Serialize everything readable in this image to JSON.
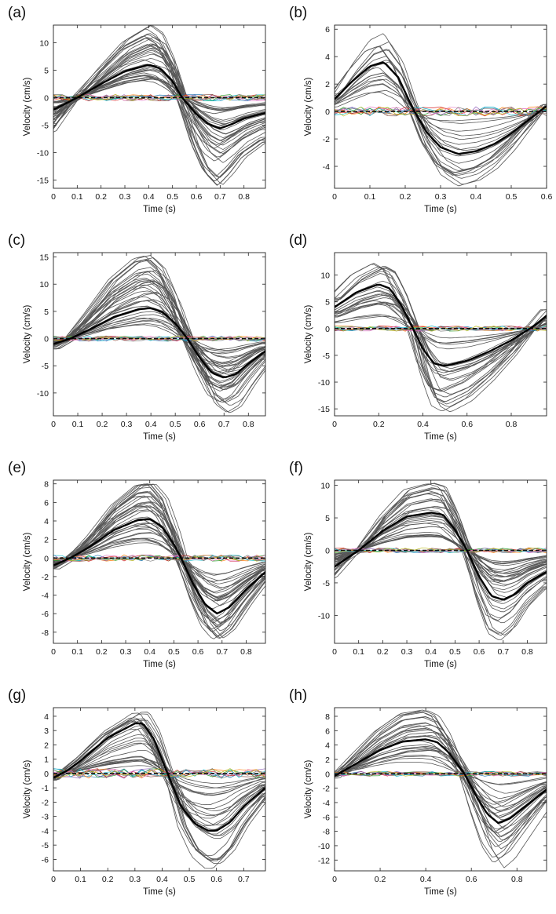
{
  "chart_data": [
    {
      "id": "a",
      "panel_label": "(a)",
      "type": "line",
      "xlabel": "Time (s)",
      "ylabel": "Velocity (cm/s)",
      "xlim": [
        0,
        0.89
      ],
      "ylim": [
        -16.5,
        13.2
      ],
      "xticks": [
        0,
        0.1,
        0.2,
        0.3,
        0.4,
        0.5,
        0.6,
        0.7,
        0.8
      ],
      "xtick_labels": [
        "0",
        "0.1",
        "0.2",
        "0.3",
        "0.4",
        "0.5",
        "0.6",
        "0.7",
        "0.8"
      ],
      "yticks": [
        10,
        5,
        0,
        -5,
        -10,
        -15
      ],
      "ytick_labels": [
        "10",
        "5",
        "0",
        "-5",
        "-10",
        "-15"
      ],
      "mean_curve": {
        "x": [
          0,
          0.1,
          0.2,
          0.3,
          0.4,
          0.45,
          0.5,
          0.54,
          0.6,
          0.65,
          0.7,
          0.75,
          0.8,
          0.89
        ],
        "y": [
          -2.2,
          0,
          2.5,
          4.8,
          6.0,
          5.3,
          3.0,
          0,
          -3.0,
          -4.8,
          -5.6,
          -4.8,
          -3.8,
          -2.8
        ]
      },
      "peak_pos": 0.39,
      "zero_cross": 0.535,
      "trough_pos": 0.71,
      "pos_range": [
        3.0,
        13.2
      ],
      "neg_range": [
        -1.5,
        -16.3
      ],
      "n_curves": 38,
      "noise_amp": 0.6
    },
    {
      "id": "b",
      "panel_label": "(b)",
      "type": "line",
      "xlabel": "Time (s)",
      "ylabel": "Velocity (cm/s)",
      "xlim": [
        0,
        0.6
      ],
      "ylim": [
        -5.6,
        6.3
      ],
      "xticks": [
        0,
        0.1,
        0.2,
        0.3,
        0.4,
        0.5,
        0.6
      ],
      "xtick_labels": [
        "0",
        "0.1",
        "0.2",
        "0.3",
        "0.4",
        "0.5",
        "0.6"
      ],
      "yticks": [
        6,
        4,
        2,
        0,
        -2,
        -4
      ],
      "ytick_labels": [
        "6",
        "4",
        "2",
        "0",
        "-2",
        "-4"
      ],
      "mean_curve": {
        "x": [
          0,
          0.05,
          0.1,
          0.14,
          0.18,
          0.22,
          0.26,
          0.3,
          0.35,
          0.4,
          0.45,
          0.5,
          0.55,
          0.6
        ],
        "y": [
          0.9,
          2.2,
          3.3,
          3.6,
          2.5,
          0.3,
          -1.5,
          -2.6,
          -3.1,
          -2.9,
          -2.4,
          -1.6,
          -0.6,
          0.4
        ]
      },
      "peak_pos": 0.14,
      "zero_cross": 0.225,
      "trough_pos": 0.36,
      "pos_range": [
        1.3,
        6.1
      ],
      "neg_range": [
        -0.7,
        -5.5
      ],
      "n_curves": 20,
      "noise_amp": 0.35
    },
    {
      "id": "c",
      "panel_label": "(c)",
      "type": "line",
      "xlabel": "Time (s)",
      "ylabel": "Velocity (cm/s)",
      "xlim": [
        0,
        0.87
      ],
      "ylim": [
        -14.2,
        15.8
      ],
      "xticks": [
        0,
        0.1,
        0.2,
        0.3,
        0.4,
        0.5,
        0.6,
        0.7,
        0.8
      ],
      "xtick_labels": [
        "0",
        "0.1",
        "0.2",
        "0.3",
        "0.4",
        "0.5",
        "0.6",
        "0.7",
        "0.8"
      ],
      "yticks": [
        15,
        10,
        5,
        0,
        -5,
        -10
      ],
      "ytick_labels": [
        "15",
        "10",
        "5",
        "0",
        "-5",
        "-10"
      ],
      "mean_curve": {
        "x": [
          0,
          0.07,
          0.15,
          0.25,
          0.35,
          0.4,
          0.45,
          0.5,
          0.55,
          0.6,
          0.65,
          0.7,
          0.75,
          0.8,
          0.87
        ],
        "y": [
          -1.0,
          0,
          1.7,
          4.0,
          5.4,
          5.6,
          4.8,
          2.8,
          0,
          -3.5,
          -6.3,
          -7.2,
          -6.5,
          -4.6,
          -2.3
        ]
      },
      "peak_pos": 0.38,
      "zero_cross": 0.54,
      "trough_pos": 0.7,
      "pos_range": [
        2.5,
        15.6
      ],
      "neg_range": [
        -2.0,
        -13.8
      ],
      "n_curves": 38,
      "noise_amp": 0.5
    },
    {
      "id": "d",
      "panel_label": "(d)",
      "type": "line",
      "xlabel": "Time (s)",
      "ylabel": "Velocity (cm/s)",
      "xlim": [
        0,
        0.96
      ],
      "ylim": [
        -16.3,
        14.2
      ],
      "xticks": [
        0,
        0.2,
        0.4,
        0.6,
        0.8
      ],
      "xtick_labels": [
        "0",
        "0.2",
        "0.4",
        "0.6",
        "0.8"
      ],
      "yticks": [
        10,
        5,
        0,
        -5,
        -10,
        -15
      ],
      "ytick_labels": [
        "10",
        "5",
        "0",
        "-5",
        "-10",
        "-15"
      ],
      "mean_curve": {
        "x": [
          0,
          0.1,
          0.2,
          0.25,
          0.3,
          0.35,
          0.4,
          0.45,
          0.5,
          0.6,
          0.7,
          0.8,
          0.9,
          0.96
        ],
        "y": [
          4.0,
          6.8,
          8.3,
          7.5,
          4.5,
          0.5,
          -3.8,
          -6.5,
          -7.0,
          -6.0,
          -4.3,
          -2.2,
          0.4,
          2.4
        ]
      },
      "peak_pos": 0.22,
      "zero_cross": 0.355,
      "trough_pos": 0.52,
      "pos_range": [
        2.0,
        13.8
      ],
      "neg_range": [
        -1.5,
        -16.0
      ],
      "n_curves": 26,
      "noise_amp": 0.5
    },
    {
      "id": "e",
      "panel_label": "(e)",
      "type": "line",
      "xlabel": "Time (s)",
      "ylabel": "Velocity (cm/s)",
      "xlim": [
        0,
        0.88
      ],
      "ylim": [
        -9.2,
        8.4
      ],
      "xticks": [
        0,
        0.1,
        0.2,
        0.3,
        0.4,
        0.5,
        0.6,
        0.7,
        0.8
      ],
      "xtick_labels": [
        "0",
        "0.1",
        "0.2",
        "0.3",
        "0.4",
        "0.5",
        "0.6",
        "0.7",
        "0.8"
      ],
      "yticks": [
        8,
        6,
        4,
        2,
        0,
        -2,
        -4,
        -6,
        -8
      ],
      "ytick_labels": [
        "8",
        "6",
        "4",
        "2",
        "0",
        "-2",
        "-4",
        "-6",
        "-8"
      ],
      "mean_curve": {
        "x": [
          0,
          0.07,
          0.15,
          0.25,
          0.35,
          0.4,
          0.45,
          0.5,
          0.53,
          0.58,
          0.63,
          0.68,
          0.73,
          0.8,
          0.88
        ],
        "y": [
          -0.8,
          0,
          1.2,
          3.0,
          4.1,
          4.2,
          3.4,
          1.5,
          0,
          -2.8,
          -5.0,
          -6.0,
          -5.3,
          -3.4,
          -1.5
        ]
      },
      "peak_pos": 0.38,
      "zero_cross": 0.525,
      "trough_pos": 0.68,
      "pos_range": [
        1.5,
        8.2
      ],
      "neg_range": [
        -1.5,
        -9.0
      ],
      "n_curves": 38,
      "noise_amp": 0.35
    },
    {
      "id": "f",
      "panel_label": "(f)",
      "type": "line",
      "xlabel": "Time (s)",
      "ylabel": "Velocity (cm/s)",
      "xlim": [
        0,
        0.88
      ],
      "ylim": [
        -14.3,
        10.8
      ],
      "xticks": [
        0,
        0.1,
        0.2,
        0.3,
        0.4,
        0.5,
        0.6,
        0.7,
        0.8
      ],
      "xtick_labels": [
        "0",
        "0.1",
        "0.2",
        "0.3",
        "0.4",
        "0.5",
        "0.6",
        "0.7",
        "0.8"
      ],
      "yticks": [
        10,
        5,
        0,
        -5,
        -10
      ],
      "ytick_labels": [
        "10",
        "5",
        "0",
        "-5",
        "-10"
      ],
      "mean_curve": {
        "x": [
          0,
          0.1,
          0.2,
          0.3,
          0.4,
          0.45,
          0.5,
          0.55,
          0.6,
          0.65,
          0.7,
          0.75,
          0.8,
          0.88
        ],
        "y": [
          -2.5,
          0,
          3.0,
          5.2,
          5.8,
          5.5,
          3.2,
          0,
          -4.0,
          -7.0,
          -7.6,
          -6.7,
          -5.0,
          -3.3
        ]
      },
      "peak_pos": 0.42,
      "zero_cross": 0.555,
      "trough_pos": 0.7,
      "pos_range": [
        2.0,
        10.5
      ],
      "neg_range": [
        -1.5,
        -14.0
      ],
      "n_curves": 34,
      "noise_amp": 0.4
    },
    {
      "id": "g",
      "panel_label": "(g)",
      "type": "line",
      "xlabel": "Time (s)",
      "ylabel": "Velocity (cm/s)",
      "xlim": [
        0,
        0.78
      ],
      "ylim": [
        -6.8,
        4.6
      ],
      "xticks": [
        0,
        0.1,
        0.2,
        0.3,
        0.4,
        0.5,
        0.6,
        0.7
      ],
      "xtick_labels": [
        "0",
        "0.1",
        "0.2",
        "0.3",
        "0.4",
        "0.5",
        "0.6",
        "0.7"
      ],
      "yticks": [
        4,
        3,
        2,
        1,
        0,
        -1,
        -2,
        -3,
        -4,
        -5,
        -6
      ],
      "ytick_labels": [
        "4",
        "3",
        "2",
        "1",
        "0",
        "-1",
        "-2",
        "-3",
        "-4",
        "-5",
        "-6"
      ],
      "mean_curve": {
        "x": [
          0,
          0.05,
          0.1,
          0.2,
          0.3,
          0.33,
          0.37,
          0.42,
          0.47,
          0.52,
          0.57,
          0.6,
          0.65,
          0.7,
          0.78
        ],
        "y": [
          -0.3,
          0.2,
          0.9,
          2.5,
          3.5,
          3.5,
          2.4,
          0,
          -2.3,
          -3.5,
          -4.0,
          -4.0,
          -3.4,
          -2.3,
          -1.0
        ]
      },
      "peak_pos": 0.31,
      "zero_cross": 0.42,
      "trough_pos": 0.59,
      "pos_range": [
        0.5,
        4.5
      ],
      "neg_range": [
        -0.5,
        -6.6
      ],
      "n_curves": 28,
      "noise_amp": 0.35
    },
    {
      "id": "h",
      "panel_label": "(h)",
      "type": "line",
      "xlabel": "Time (s)",
      "ylabel": "Velocity (cm/s)",
      "xlim": [
        0,
        0.93
      ],
      "ylim": [
        -13.5,
        9.2
      ],
      "xticks": [
        0,
        0.2,
        0.4,
        0.6,
        0.8
      ],
      "xtick_labels": [
        "0",
        "0.2",
        "0.4",
        "0.6",
        "0.8"
      ],
      "yticks": [
        8,
        6,
        4,
        2,
        0,
        -2,
        -4,
        -6,
        -8,
        -10,
        -12
      ],
      "ytick_labels": [
        "8",
        "6",
        "4",
        "2",
        "0",
        "-2",
        "-4",
        "-6",
        "-8",
        "-10",
        "-12"
      ],
      "mean_curve": {
        "x": [
          0,
          0.1,
          0.2,
          0.3,
          0.4,
          0.45,
          0.5,
          0.57,
          0.62,
          0.67,
          0.72,
          0.77,
          0.85,
          0.93
        ],
        "y": [
          -0.3,
          1.5,
          3.3,
          4.5,
          4.8,
          4.4,
          3.0,
          0,
          -3.0,
          -5.6,
          -6.9,
          -6.2,
          -4.2,
          -2.2
        ]
      },
      "peak_pos": 0.4,
      "zero_cross": 0.575,
      "trough_pos": 0.75,
      "pos_range": [
        1.0,
        9.0
      ],
      "neg_range": [
        -1.0,
        -13.2
      ],
      "n_curves": 30,
      "noise_amp": 0.35
    }
  ],
  "colors": {
    "curves": "#555555",
    "mean": "#000000",
    "baseline_dash": "#111111",
    "noise": [
      "#1f77b4",
      "#ff7f0e",
      "#2ca02c",
      "#d62728",
      "#9467bd",
      "#8c564b",
      "#e377c2",
      "#17becf",
      "#bcbd22",
      "#7f7f7f"
    ]
  }
}
